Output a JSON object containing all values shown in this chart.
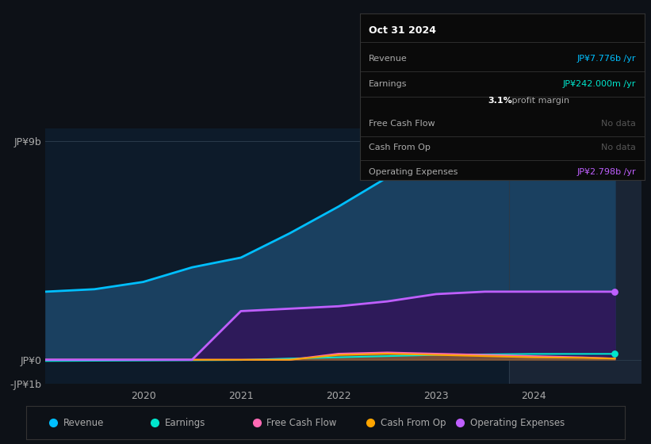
{
  "background_color": "#0d1117",
  "chart_bg_color": "#0d1b2a",
  "highlight_bg": "#1a2535",
  "x_years": [
    2019.0,
    2019.5,
    2020.0,
    2020.5,
    2021.0,
    2021.5,
    2022.0,
    2022.5,
    2023.0,
    2023.5,
    2024.0,
    2024.5,
    2024.83
  ],
  "revenue": [
    2.8,
    2.9,
    3.2,
    3.8,
    4.2,
    5.2,
    6.3,
    7.5,
    8.5,
    8.6,
    8.0,
    7.8,
    7.776
  ],
  "earnings": [
    -0.05,
    -0.04,
    -0.03,
    -0.02,
    -0.01,
    0.05,
    0.1,
    0.15,
    0.2,
    0.22,
    0.24,
    0.24,
    0.242
  ],
  "free_cash_flow": [
    0.0,
    0.0,
    0.0,
    0.0,
    0.0,
    0.0,
    0.25,
    0.3,
    0.25,
    0.2,
    0.15,
    0.1,
    0.05
  ],
  "cash_from_op": [
    0.0,
    0.0,
    0.0,
    0.0,
    0.0,
    0.0,
    0.2,
    0.25,
    0.2,
    0.15,
    0.1,
    0.08,
    0.05
  ],
  "operating_exp": [
    0.0,
    0.0,
    0.0,
    0.0,
    2.0,
    2.1,
    2.2,
    2.4,
    2.7,
    2.8,
    2.8,
    2.8,
    2.798
  ],
  "revenue_color": "#00bfff",
  "earnings_color": "#00e5cc",
  "free_cash_flow_color": "#ff69b4",
  "cash_from_op_color": "#ffa500",
  "operating_exp_color": "#bf5fff",
  "revenue_fill": "#1a4060",
  "operating_exp_fill": "#2e1a5a",
  "ylim_min": -1.0,
  "ylim_max": 9.5,
  "ytick_vals": [
    -1,
    0,
    9
  ],
  "ytick_labels": [
    "-JP¥1b",
    "JP¥0",
    "JP¥9b"
  ],
  "xlim_min": 2019.0,
  "xlim_max": 2025.1,
  "xtick_positions": [
    2020,
    2021,
    2022,
    2023,
    2024
  ],
  "xtick_labels": [
    "2020",
    "2021",
    "2022",
    "2023",
    "2024"
  ],
  "highlight_start": 2023.75,
  "highlight_end": 2025.1,
  "tooltip_date": "Oct 31 2024",
  "tooltip_revenue_label": "Revenue",
  "tooltip_revenue_value": "JP¥7.776b /yr",
  "tooltip_earnings_label": "Earnings",
  "tooltip_earnings_value": "JP¥242.000m /yr",
  "tooltip_margin_bold": "3.1%",
  "tooltip_margin_rest": " profit margin",
  "tooltip_fcf_label": "Free Cash Flow",
  "tooltip_fcf_value": "No data",
  "tooltip_cfo_label": "Cash From Op",
  "tooltip_cfo_value": "No data",
  "tooltip_opex_label": "Operating Expenses",
  "tooltip_opex_value": "JP¥2.798b /yr",
  "legend_items": [
    "Revenue",
    "Earnings",
    "Free Cash Flow",
    "Cash From Op",
    "Operating Expenses"
  ],
  "legend_colors": [
    "#00bfff",
    "#00e5cc",
    "#ff69b4",
    "#ffa500",
    "#bf5fff"
  ],
  "grid_color": "#2a3a4a",
  "text_color": "#aaaaaa",
  "header_color": "#ffffff",
  "revenue_val_color": "#00bfff",
  "earnings_val_color": "#00e5cc",
  "nodata_color": "#555555",
  "opex_val_color": "#bf5fff",
  "margin_bold_color": "#ffffff",
  "margin_rest_color": "#aaaaaa",
  "separator_color": "#333333"
}
